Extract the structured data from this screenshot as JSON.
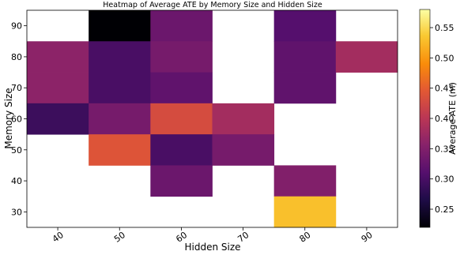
{
  "chart_data": {
    "type": "heatmap",
    "title": "Heatmap of Average ATE by Memory Size and Hidden Size",
    "xlabel": "Hidden Size",
    "ylabel": "Memory Size",
    "x_categories": [
      "40",
      "50",
      "60",
      "70",
      "80",
      "90"
    ],
    "y_categories": [
      "90",
      "80",
      "70",
      "60",
      "50",
      "40",
      "30"
    ],
    "colorbar": {
      "label": "Average ATE (m)",
      "vmin": 0.22,
      "vmax": 0.58,
      "ticks": [
        "0.25",
        "0.30",
        "0.35",
        "0.40",
        "0.45",
        "0.50",
        "0.55"
      ],
      "colormap": "inferno-like"
    },
    "cells": [
      {
        "x": "50",
        "y": "90",
        "value": 0.22
      },
      {
        "x": "60",
        "y": "90",
        "value": 0.33
      },
      {
        "x": "80",
        "y": "90",
        "value": 0.31
      },
      {
        "x": "40",
        "y": "80",
        "value": 0.36
      },
      {
        "x": "50",
        "y": "80",
        "value": 0.3
      },
      {
        "x": "60",
        "y": "80",
        "value": 0.34
      },
      {
        "x": "80",
        "y": "80",
        "value": 0.32
      },
      {
        "x": "90",
        "y": "80",
        "value": 0.38
      },
      {
        "x": "40",
        "y": "70",
        "value": 0.36
      },
      {
        "x": "50",
        "y": "70",
        "value": 0.3
      },
      {
        "x": "60",
        "y": "70",
        "value": 0.32
      },
      {
        "x": "80",
        "y": "70",
        "value": 0.32
      },
      {
        "x": "40",
        "y": "60",
        "value": 0.29
      },
      {
        "x": "50",
        "y": "60",
        "value": 0.34
      },
      {
        "x": "60",
        "y": "60",
        "value": 0.43
      },
      {
        "x": "70",
        "y": "60",
        "value": 0.38
      },
      {
        "x": "50",
        "y": "50",
        "value": 0.44
      },
      {
        "x": "60",
        "y": "50",
        "value": 0.3
      },
      {
        "x": "70",
        "y": "50",
        "value": 0.34
      },
      {
        "x": "60",
        "y": "40",
        "value": 0.33
      },
      {
        "x": "80",
        "y": "40",
        "value": 0.35
      },
      {
        "x": "80",
        "y": "30",
        "value": 0.53
      }
    ]
  }
}
